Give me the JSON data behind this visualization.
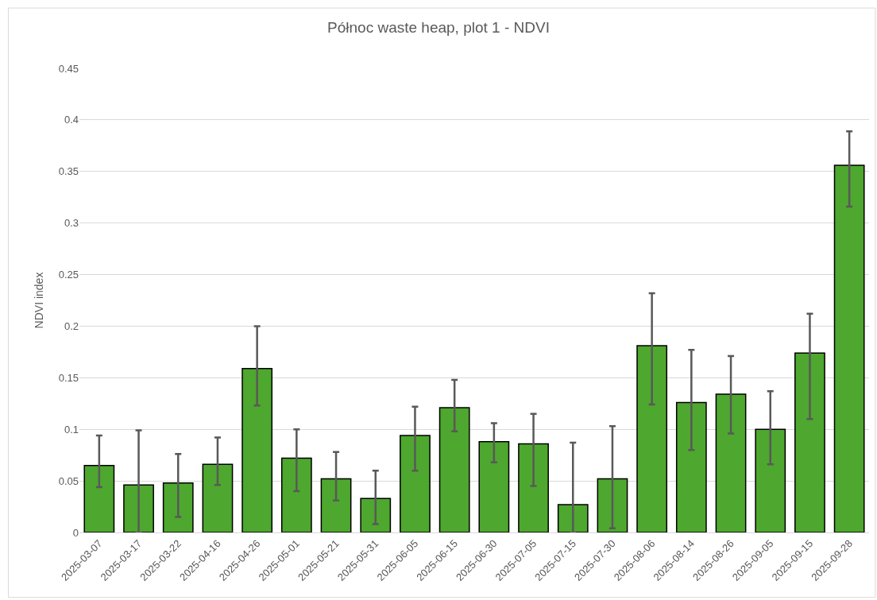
{
  "chart_data": {
    "type": "bar",
    "title": "Północ waste heap, plot 1 - NDVI",
    "ylabel": "NDVI index",
    "categories": [
      "2025-03-07",
      "2025-03-17",
      "2025-03-22",
      "2025-04-16",
      "2025-04-26",
      "2025-05-01",
      "2025-05-21",
      "2025-05-31",
      "2025-06-05",
      "2025-06-15",
      "2025-06-30",
      "2025-07-05",
      "2025-07-15",
      "2025-07-30",
      "2025-08-06",
      "2025-08-14",
      "2025-08-26",
      "2025-09-05",
      "2025-09-15",
      "2025-09-28"
    ],
    "values": [
      0.065,
      0.046,
      0.048,
      0.066,
      0.159,
      0.072,
      0.052,
      0.033,
      0.094,
      0.121,
      0.088,
      0.086,
      0.027,
      0.052,
      0.181,
      0.126,
      0.134,
      0.1,
      0.174,
      0.356
    ],
    "errors": [
      [
        0.044,
        0.094
      ],
      [
        0.0,
        0.099
      ],
      [
        0.015,
        0.076
      ],
      [
        0.046,
        0.092
      ],
      [
        0.123,
        0.2
      ],
      [
        0.04,
        0.1
      ],
      [
        0.031,
        0.078
      ],
      [
        0.008,
        0.06
      ],
      [
        0.06,
        0.122
      ],
      [
        0.098,
        0.148
      ],
      [
        0.068,
        0.106
      ],
      [
        0.045,
        0.115
      ],
      [
        0.0,
        0.087
      ],
      [
        0.004,
        0.103
      ],
      [
        0.124,
        0.232
      ],
      [
        0.08,
        0.177
      ],
      [
        0.096,
        0.171
      ],
      [
        0.066,
        0.137
      ],
      [
        0.11,
        0.212
      ],
      [
        0.316,
        0.389
      ]
    ],
    "color": "#4ea72e",
    "ylim": [
      0,
      0.45
    ],
    "yticks": [
      0,
      0.05,
      0.1,
      0.15,
      0.2,
      0.25,
      0.3,
      0.35,
      0.4,
      0.45
    ],
    "grid": "y"
  }
}
